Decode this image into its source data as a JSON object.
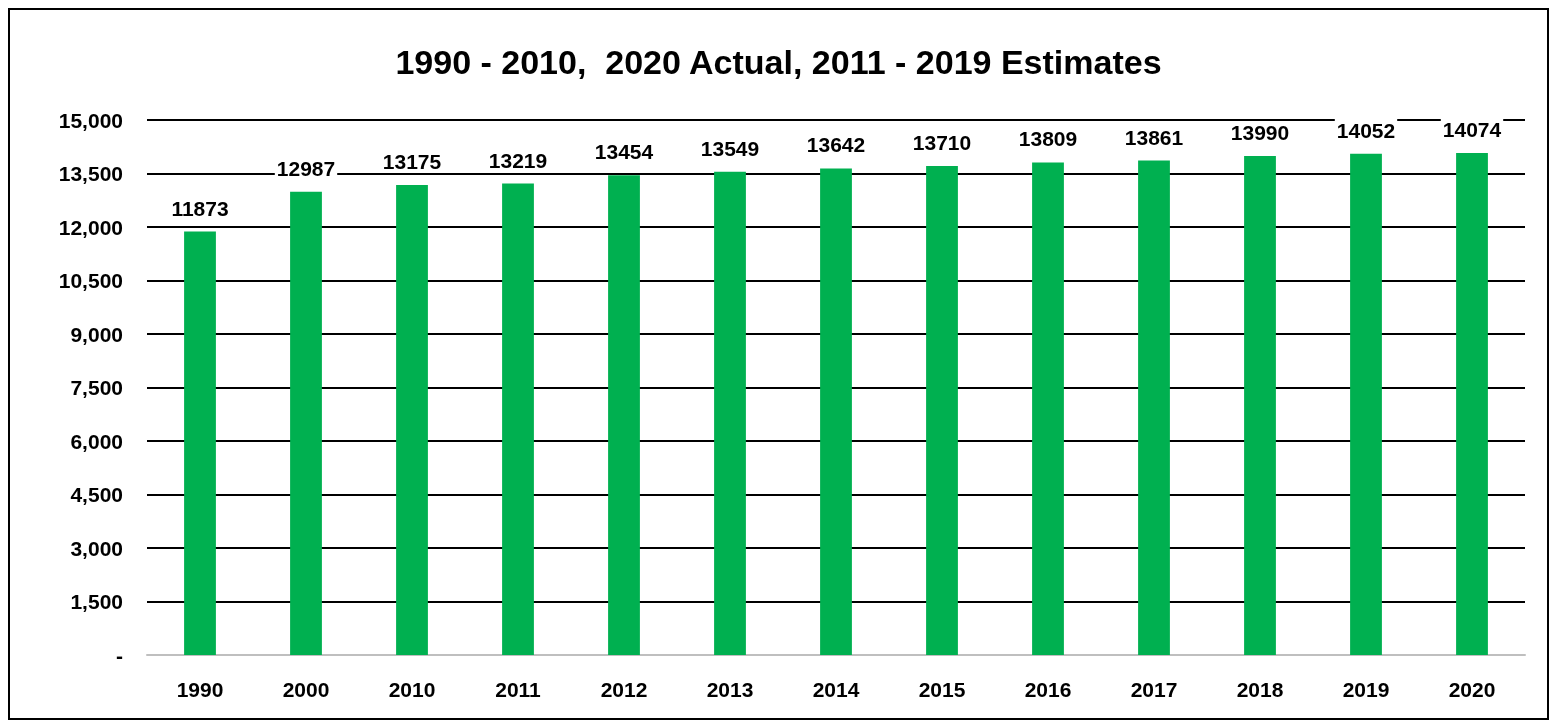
{
  "chart_data": {
    "type": "bar",
    "title": "1990 - 2010,  2020 Actual, 2011 - 2019 Estimates",
    "categories": [
      "1990",
      "2000",
      "2010",
      "2011",
      "2012",
      "2013",
      "2014",
      "2015",
      "2016",
      "2017",
      "2018",
      "2019",
      "2020"
    ],
    "values": [
      11873,
      12987,
      13175,
      13219,
      13454,
      13549,
      13642,
      13710,
      13809,
      13861,
      13990,
      14052,
      14074
    ],
    "color": "#00b050",
    "data_labels": true,
    "grid": "y",
    "ylim": [
      0,
      15000
    ],
    "yticks": [
      {
        "value": 0,
        "label": "-"
      },
      {
        "value": 1500,
        "label": "1,500"
      },
      {
        "value": 3000,
        "label": "3,000"
      },
      {
        "value": 4500,
        "label": "4,500"
      },
      {
        "value": 6000,
        "label": "6,000"
      },
      {
        "value": 7500,
        "label": "7,500"
      },
      {
        "value": 9000,
        "label": "9,000"
      },
      {
        "value": 10500,
        "label": "10,500"
      },
      {
        "value": 12000,
        "label": "12,000"
      },
      {
        "value": 13500,
        "label": "13,500"
      },
      {
        "value": 15000,
        "label": "15,000"
      }
    ]
  }
}
